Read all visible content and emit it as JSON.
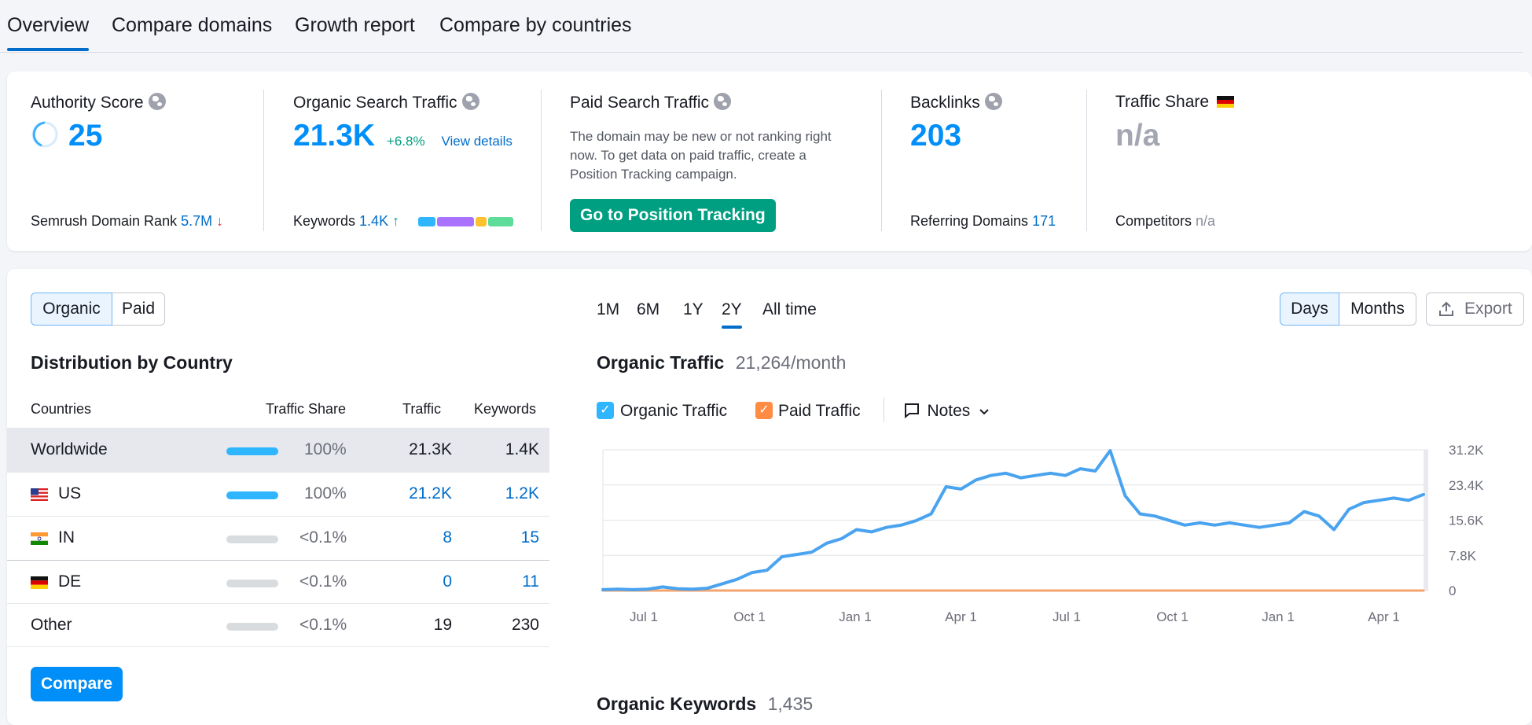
{
  "tabs": [
    "Overview",
    "Compare domains",
    "Growth report",
    "Compare by countries"
  ],
  "authority": {
    "label": "Authority Score",
    "value": "25",
    "rank_label": "Semrush Domain Rank",
    "rank_value": "5.7M",
    "rank_arrow": "↓"
  },
  "organic": {
    "label": "Organic Search Traffic",
    "value": "21.3K",
    "change": "+6.8%",
    "details": "View details",
    "keywords_label": "Keywords",
    "keywords_value": "1.4K",
    "keywords_arrow": "↑"
  },
  "paid": {
    "label": "Paid Search Traffic",
    "message": "The domain may be new or not ranking right now. To get data on paid traffic, create a Position Tracking campaign.",
    "button": "Go to Position Tracking"
  },
  "backlinks": {
    "label": "Backlinks",
    "value": "203",
    "ref_label": "Referring Domains",
    "ref_value": "171"
  },
  "share": {
    "label": "Traffic Share",
    "value": "n/a",
    "comp_label": "Competitors",
    "comp_value": "n/a"
  },
  "toggle": [
    "Organic",
    "Paid"
  ],
  "distribution": {
    "title": "Distribution by Country",
    "headers": [
      "Countries",
      "Traffic Share",
      "Traffic",
      "Keywords"
    ],
    "rows": [
      {
        "name": "Worldwide",
        "share": "100%",
        "traffic": "21.3K",
        "keywords": "1.4K"
      },
      {
        "name": "US",
        "share": "100%",
        "traffic": "21.2K",
        "keywords": "1.2K"
      },
      {
        "name": "IN",
        "share": "<0.1%",
        "traffic": "8",
        "keywords": "15"
      },
      {
        "name": "DE",
        "share": "<0.1%",
        "traffic": "0",
        "keywords": "11"
      },
      {
        "name": "Other",
        "share": "<0.1%",
        "traffic": "19",
        "keywords": "230"
      }
    ],
    "compare_button": "Compare"
  },
  "periods": [
    "1M",
    "6M",
    "1Y",
    "2Y",
    "All time"
  ],
  "granularity": [
    "Days",
    "Months"
  ],
  "export": "Export",
  "traffic_title": "Organic Traffic",
  "traffic_value": "21,264/month",
  "legend": {
    "organic": "Organic Traffic",
    "paid": "Paid Traffic",
    "notes": "Notes"
  },
  "keywords_title": "Organic Keywords",
  "keywords_value": "1,435",
  "colors": {
    "organic": "#4aa3ef",
    "paid": "#f4a46f",
    "accent": "#008ff8",
    "green": "#009f81"
  },
  "chart_data": {
    "type": "line",
    "x_ticks": [
      "Jul 1",
      "Oct 1",
      "Jan 1",
      "Apr 1",
      "Jul 1",
      "Oct 1",
      "Jan 1",
      "Apr 1"
    ],
    "y_ticks": [
      "31.2K",
      "23.4K",
      "15.6K",
      "7.8K",
      "0"
    ],
    "ylim": [
      0,
      31200
    ],
    "series": [
      {
        "name": "Organic Traffic",
        "values": [
          200,
          300,
          200,
          300,
          800,
          400,
          300,
          500,
          1500,
          2500,
          4000,
          4500,
          7500,
          8000,
          8500,
          10500,
          11500,
          13500,
          13000,
          14000,
          14500,
          15500,
          17000,
          23000,
          22500,
          24500,
          25500,
          26000,
          25000,
          25500,
          26000,
          25500,
          27000,
          26500,
          31000,
          21000,
          17000,
          16500,
          15500,
          14500,
          15000,
          14500,
          15000,
          14500,
          14000,
          14500,
          15000,
          17500,
          16500,
          13500,
          18000,
          19500,
          20000,
          20500,
          20000,
          21300
        ]
      },
      {
        "name": "Paid Traffic",
        "values": [
          0,
          0,
          0,
          0,
          0,
          0,
          0,
          0,
          0,
          0,
          0,
          0,
          0,
          0,
          0,
          0,
          0,
          0,
          0,
          0,
          0,
          0,
          0,
          0,
          0,
          0,
          0,
          0,
          0,
          0,
          0,
          0,
          0,
          0,
          0,
          0,
          0,
          0,
          0,
          0,
          0,
          0,
          0,
          0,
          0,
          0,
          0,
          0,
          0,
          0,
          0,
          0,
          0,
          0,
          0,
          0
        ]
      }
    ]
  }
}
